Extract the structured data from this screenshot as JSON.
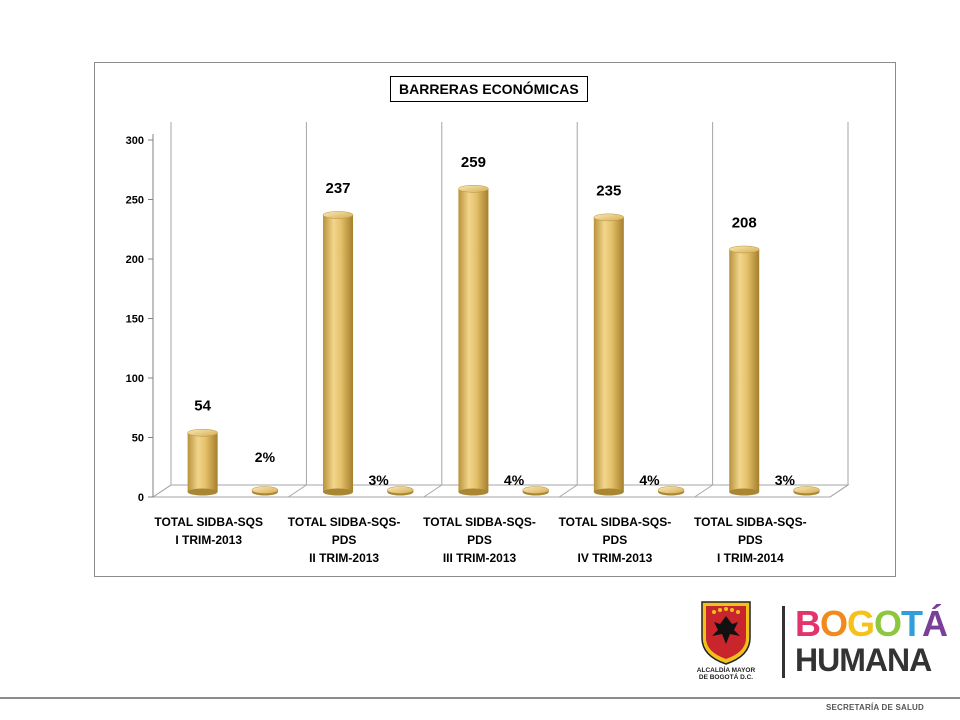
{
  "chart_data": {
    "type": "bar",
    "title": "BARRERAS ECONÓMICAS",
    "categories": [
      [
        "TOTAL SIDBA-SQS",
        "I TRIM-2013"
      ],
      [
        "TOTAL SIDBA-SQS-",
        "PDS",
        "II TRIM-2013"
      ],
      [
        "TOTAL SIDBA-SQS-",
        "PDS",
        "III TRIM-2013"
      ],
      [
        "TOTAL SIDBA-SQS-",
        "PDS",
        "IV TRIM-2013"
      ],
      [
        "TOTAL SIDBA-SQS-",
        "PDS",
        "I TRIM-2014"
      ]
    ],
    "series": [
      {
        "values": [
          54,
          237,
          259,
          235,
          208
        ],
        "labels": [
          "54",
          "237",
          "259",
          "235",
          "208"
        ],
        "color": "#d9b45a"
      },
      {
        "values": [
          2,
          3,
          4,
          4,
          3
        ],
        "labels": [
          "2%",
          "3%",
          "4%",
          "4%",
          "3%"
        ],
        "color": "#c9a24a"
      }
    ],
    "ylim": [
      0,
      300
    ],
    "yticks": [
      0,
      50,
      100,
      150,
      200,
      250,
      300
    ],
    "grid": "vertical",
    "legend": "none",
    "style": "3d-cylinder"
  },
  "footer": {
    "department": "SECRETARÍA DE SALUD"
  },
  "logos": {
    "city_hall_line1": "ALCALDÍA MAYOR",
    "city_hall_line2": "DE BOGOTÁ D.C.",
    "brand_word1_letters": [
      {
        "ch": "B",
        "color": "#e2336b"
      },
      {
        "ch": "O",
        "color": "#f08a1c"
      },
      {
        "ch": "G",
        "color": "#f4c21a"
      },
      {
        "ch": "O",
        "color": "#8dc63f"
      },
      {
        "ch": "T",
        "color": "#2e9fd8"
      },
      {
        "ch": "Á",
        "color": "#7a3f98"
      }
    ],
    "brand_word2": "HUMANA"
  }
}
